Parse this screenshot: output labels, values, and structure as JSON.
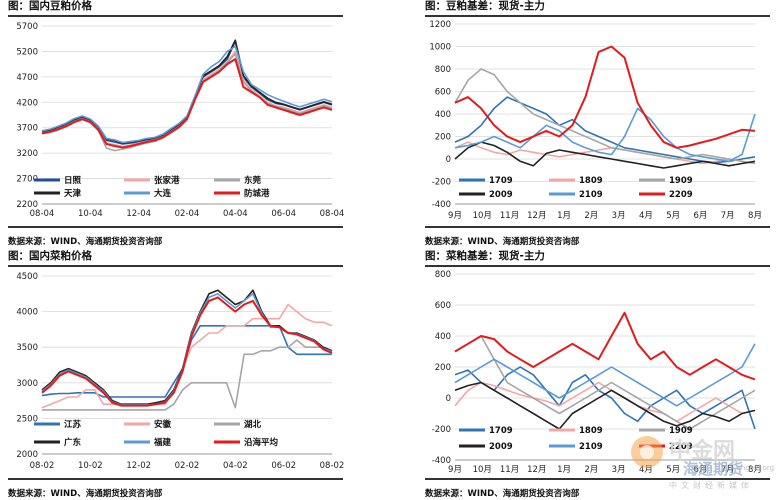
{
  "panels": [
    {
      "title": "图：国内豆粕价格",
      "source": "数据来源：WIND、海通期货投资咨询部",
      "chart_data": {
        "type": "line",
        "title": "图：国内豆粕价格",
        "xlabel": "",
        "ylabel": "",
        "ylim": [
          2200,
          5700
        ],
        "yticks": [
          2200,
          2700,
          3200,
          3700,
          4200,
          4700,
          5200,
          5700
        ],
        "xticks": [
          "08-04",
          "10-04",
          "12-04",
          "02-04",
          "04-04",
          "06-04",
          "08-04"
        ],
        "grid": "horizontal",
        "legend": "bottom-left",
        "series": [
          {
            "name": "日照",
            "color": "#1F4E9A",
            "values": [
              3620,
              3650,
              3700,
              3760,
              3850,
              3900,
              3840,
              3700,
              3450,
              3420,
              3380,
              3400,
              3420,
              3460,
              3480,
              3540,
              3650,
              3750,
              3900,
              4300,
              4700,
              4800,
              4900,
              5050,
              5400,
              4700,
              4500,
              4380,
              4250,
              4180,
              4150,
              4100,
              4050,
              4100,
              4150,
              4200,
              4150
            ]
          },
          {
            "name": "张家港",
            "color": "#F2A7A7",
            "values": [
              3600,
              3620,
              3680,
              3740,
              3820,
              3880,
              3820,
              3680,
              3400,
              3370,
              3330,
              3360,
              3400,
              3430,
              3460,
              3520,
              3620,
              3720,
              3880,
              4280,
              4650,
              4750,
              4850,
              5000,
              5200,
              4650,
              4450,
              4330,
              4200,
              4130,
              4100,
              4050,
              4000,
              4050,
              4100,
              4150,
              4100
            ]
          },
          {
            "name": "东莞",
            "color": "#A6A6A6",
            "values": [
              3580,
              3610,
              3650,
              3720,
              3800,
              3860,
              3800,
              3640,
              3300,
              3250,
              3280,
              3310,
              3360,
              3400,
              3430,
              3500,
              3600,
              3700,
              3860,
              4250,
              4620,
              4720,
              4820,
              4980,
              5150,
              4600,
              4420,
              4300,
              4180,
              4120,
              4080,
              4030,
              3980,
              4030,
              4080,
              4130,
              4080
            ]
          },
          {
            "name": "天津",
            "color": "#222222",
            "values": [
              3630,
              3660,
              3720,
              3780,
              3870,
              3920,
              3860,
              3720,
              3480,
              3450,
              3400,
              3420,
              3440,
              3480,
              3500,
              3560,
              3670,
              3770,
              3920,
              4320,
              4720,
              4820,
              4920,
              5100,
              5420,
              4720,
              4520,
              4400,
              4280,
              4200,
              4160,
              4110,
              4060,
              4110,
              4160,
              4210,
              4160
            ]
          },
          {
            "name": "大连",
            "color": "#5B9BD5",
            "values": [
              3640,
              3670,
              3730,
              3790,
              3880,
              3930,
              3870,
              3730,
              3490,
              3460,
              3410,
              3430,
              3450,
              3490,
              3510,
              3570,
              3680,
              3780,
              3930,
              4330,
              4750,
              4900,
              5000,
              5200,
              5300,
              4800,
              4550,
              4450,
              4350,
              4280,
              4220,
              4160,
              4110,
              4160,
              4210,
              4260,
              4210
            ]
          },
          {
            "name": "防城港",
            "color": "#E41A1C",
            "values": [
              3590,
              3620,
              3670,
              3730,
              3810,
              3870,
              3810,
              3660,
              3380,
              3340,
              3310,
              3340,
              3380,
              3420,
              3450,
              3510,
              3610,
              3710,
              3870,
              4260,
              4600,
              4700,
              4800,
              4950,
              5050,
              4500,
              4400,
              4300,
              4150,
              4100,
              4050,
              4000,
              3950,
              4000,
              4050,
              4100,
              4050
            ]
          }
        ]
      }
    },
    {
      "title": "图：豆粕基差：现货-主力",
      "source": "数据来源：WIND、海通期货投资咨询部",
      "chart_data": {
        "type": "line",
        "title": "图：豆粕基差：现货-主力",
        "xlabel": "",
        "ylabel": "",
        "ylim": [
          -400,
          1200
        ],
        "yticks": [
          -400,
          -200,
          0,
          200,
          400,
          600,
          800,
          1000,
          1200
        ],
        "xticks": [
          "9月",
          "10月",
          "11月",
          "12月",
          "1月",
          "2月",
          "3月",
          "4月",
          "5月",
          "6月",
          "7月",
          "8月"
        ],
        "grid": "horizontal",
        "legend": "bottom-left",
        "series": [
          {
            "name": "1709",
            "color": "#2E75B6",
            "values": [
              150,
              200,
              300,
              450,
              550,
              500,
              450,
              400,
              300,
              350,
              250,
              200,
              150,
              100,
              80,
              60,
              40,
              20,
              0,
              -20,
              -30,
              -20,
              0,
              20
            ]
          },
          {
            "name": "1809",
            "color": "#F2A7A7",
            "values": [
              100,
              150,
              100,
              60,
              40,
              80,
              60,
              40,
              20,
              40,
              60,
              80,
              100,
              80,
              60,
              40,
              20,
              0,
              -20,
              -40,
              -20,
              0,
              -20,
              -40
            ]
          },
          {
            "name": "1909",
            "color": "#A6A6A6",
            "values": [
              500,
              700,
              800,
              750,
              600,
              500,
              400,
              350,
              300,
              250,
              200,
              150,
              100,
              80,
              60,
              40,
              20,
              0,
              20,
              40,
              20,
              0,
              -20,
              -40
            ]
          },
          {
            "name": "2009",
            "color": "#222222",
            "values": [
              0,
              100,
              150,
              120,
              60,
              -20,
              -60,
              50,
              80,
              60,
              40,
              20,
              0,
              -20,
              -40,
              -60,
              -80,
              -60,
              -40,
              -20,
              -40,
              -60,
              -40,
              -20
            ]
          },
          {
            "name": "2109",
            "color": "#5B9BD5",
            "values": [
              100,
              120,
              150,
              200,
              150,
              100,
              200,
              300,
              250,
              150,
              100,
              60,
              40,
              200,
              450,
              350,
              200,
              100,
              40,
              20,
              0,
              -20,
              40,
              400
            ]
          },
          {
            "name": "2209",
            "color": "#E41A1C",
            "values": [
              500,
              550,
              450,
              300,
              200,
              150,
              200,
              250,
              200,
              300,
              550,
              950,
              1000,
              900,
              500,
              300,
              150,
              100,
              120,
              150,
              180,
              220,
              260,
              250
            ]
          }
        ]
      }
    },
    {
      "title": "图：国内菜粕价格",
      "source": "数据来源：WIND、海通期货投资咨询部",
      "chart_data": {
        "type": "line",
        "title": "图：国内菜粕价格",
        "xlabel": "",
        "ylabel": "",
        "ylim": [
          2000,
          4500
        ],
        "yticks": [
          2000,
          2500,
          3000,
          3500,
          4000,
          4500
        ],
        "xticks": [
          "08-02",
          "10-02",
          "12-02",
          "02-02",
          "04-02",
          "06-02",
          "08-02"
        ],
        "grid": "horizontal",
        "legend": "bottom-left",
        "series": [
          {
            "name": "江苏",
            "color": "#2E75B6",
            "values": [
              2820,
              2840,
              2850,
              2850,
              2860,
              2860,
              2860,
              2800,
              2800,
              2800,
              2800,
              2800,
              2800,
              2800,
              2800,
              3000,
              3200,
              3600,
              3800,
              3800,
              3800,
              3800,
              3800,
              3800,
              3800,
              3800,
              3800,
              3800,
              3500,
              3400,
              3400,
              3400,
              3400,
              3400
            ]
          },
          {
            "name": "安徽",
            "color": "#F2A7A7",
            "values": [
              2650,
              2700,
              2750,
              2800,
              2800,
              2900,
              2900,
              2700,
              2700,
              2700,
              2700,
              2700,
              2700,
              2700,
              2700,
              2900,
              3200,
              3500,
              3600,
              3700,
              3700,
              3800,
              3800,
              3800,
              3900,
              3900,
              3900,
              3900,
              4100,
              4000,
              3900,
              3850,
              3850,
              3800
            ]
          },
          {
            "name": "湖北",
            "color": "#A6A6A6",
            "values": [
              2620,
              2620,
              2620,
              2620,
              2620,
              2620,
              2620,
              2620,
              2620,
              2620,
              2620,
              2620,
              2620,
              2620,
              2620,
              2700,
              2900,
              3000,
              3000,
              3000,
              3000,
              3000,
              2650,
              3400,
              3400,
              3450,
              3450,
              3500,
              3500,
              3600,
              3500,
              3500,
              3500,
              3400
            ]
          },
          {
            "name": "广东",
            "color": "#222222",
            "values": [
              2900,
              3000,
              3150,
              3200,
              3150,
              3100,
              3000,
              2900,
              2750,
              2700,
              2700,
              2700,
              2700,
              2720,
              2750,
              2900,
              3200,
              3700,
              4000,
              4250,
              4300,
              4200,
              4100,
              4150,
              4300,
              4000,
              3800,
              3800,
              3700,
              3700,
              3650,
              3600,
              3500,
              3450
            ]
          },
          {
            "name": "福建",
            "color": "#5B9BD5",
            "values": [
              2880,
              2980,
              3120,
              3180,
              3130,
              3080,
              2980,
              2880,
              2730,
              2690,
              2690,
              2690,
              2690,
              2700,
              2730,
              2880,
              3180,
              3680,
              3980,
              4200,
              4250,
              4150,
              4050,
              4150,
              4250,
              3980,
              3780,
              3780,
              3700,
              3690,
              3640,
              3590,
              3480,
              3440
            ]
          },
          {
            "name": "沿海平均",
            "color": "#E41A1C",
            "values": [
              2860,
              2960,
              3100,
              3160,
              3110,
              3060,
              2960,
              2860,
              2720,
              2680,
              2680,
              2680,
              2680,
              2700,
              2720,
              2860,
              3160,
              3650,
              3950,
              4150,
              4200,
              4100,
              4000,
              4100,
              4150,
              3950,
              3800,
              3780,
              3700,
              3680,
              3630,
              3580,
              3470,
              3420
            ]
          }
        ]
      }
    },
    {
      "title": "图：菜粕基差：现货-主力",
      "source": "数据来源：WIND、海通期货投资咨询部",
      "chart_data": {
        "type": "line",
        "title": "图：菜粕基差：现货-主力",
        "xlabel": "",
        "ylabel": "",
        "ylim": [
          -400,
          800
        ],
        "yticks": [
          -400,
          -200,
          0,
          200,
          400,
          600,
          800
        ],
        "xticks": [
          "9月",
          "10月",
          "11月",
          "12月",
          "1月",
          "2月",
          "3月",
          "4月",
          "5月",
          "6月",
          "7月",
          "8月"
        ],
        "grid": "horizontal",
        "legend": "bottom-left",
        "series": [
          {
            "name": "1709",
            "color": "#2E75B6",
            "values": [
              150,
              180,
              100,
              50,
              150,
              200,
              150,
              50,
              -50,
              100,
              150,
              50,
              0,
              -100,
              -150,
              -50,
              0,
              50,
              -50,
              -100,
              -50,
              0,
              50,
              -200
            ]
          },
          {
            "name": "1809",
            "color": "#F2A7A7",
            "values": [
              -50,
              50,
              100,
              80,
              50,
              20,
              0,
              -20,
              -50,
              0,
              50,
              100,
              50,
              0,
              -50,
              -80,
              -100,
              -150,
              -100,
              -50,
              0,
              -50,
              -100,
              -80
            ]
          },
          {
            "name": "1909",
            "color": "#A6A6A6",
            "values": [
              300,
              350,
              400,
              250,
              100,
              50,
              0,
              -50,
              -100,
              -50,
              0,
              50,
              100,
              50,
              0,
              -50,
              -100,
              -150,
              -200,
              -150,
              -100,
              -50,
              0,
              50
            ]
          },
          {
            "name": "2009",
            "color": "#222222",
            "values": [
              50,
              80,
              100,
              50,
              0,
              -50,
              -100,
              -150,
              -200,
              -100,
              -50,
              0,
              50,
              0,
              -50,
              -100,
              -150,
              -180,
              -150,
              -100,
              -120,
              -150,
              -100,
              -80
            ]
          },
          {
            "name": "2109",
            "color": "#5B9BD5",
            "values": [
              100,
              150,
              200,
              250,
              200,
              150,
              100,
              50,
              0,
              50,
              100,
              150,
              200,
              150,
              100,
              50,
              0,
              -50,
              0,
              50,
              100,
              150,
              200,
              350
            ]
          },
          {
            "name": "2209",
            "color": "#E41A1C",
            "values": [
              300,
              350,
              400,
              380,
              300,
              250,
              200,
              250,
              300,
              350,
              300,
              250,
              400,
              550,
              350,
              250,
              300,
              200,
              150,
              200,
              250,
              200,
              150,
              120
            ]
          }
        ]
      }
    }
  ],
  "watermark": {
    "brand_cn": "中金网",
    "brand_en": "cngold.org",
    "tagline": "中文财经新媒体",
    "logo_text": "海通期货"
  }
}
